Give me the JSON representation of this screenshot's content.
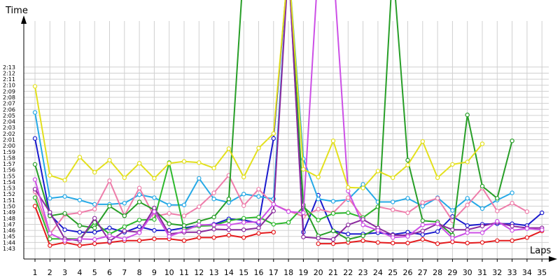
{
  "chart_data": {
    "type": "line",
    "title": "",
    "ylabel": "Time",
    "xlabel": "Laps",
    "grid": true,
    "legend": "none",
    "x_categories": [
      "1",
      "2",
      "3",
      "4",
      "5",
      "6",
      "7",
      "8",
      "9",
      "10",
      "11",
      "12",
      "13",
      "14",
      "15",
      "16",
      "17",
      "18",
      "19",
      "20",
      "21",
      "22",
      "23",
      "24",
      "25",
      "26",
      "27",
      "28",
      "29",
      "30",
      "31",
      "32",
      "33",
      "34",
      "35"
    ],
    "y_ticks": [
      "1:43",
      "1:44",
      "1:45",
      "1:46",
      "1:47",
      "1:48",
      "1:49",
      "1:50",
      "1:51",
      "1:52",
      "1:53",
      "1:54",
      "1:55",
      "1:56",
      "1:57",
      "1:58",
      "1:59",
      "2:00",
      "2:01",
      "2:02",
      "2:03",
      "2:04",
      "2:05",
      "2:06",
      "2:07",
      "2:08",
      "2:09",
      "2:10",
      "2:11",
      "2:12",
      "2:13"
    ],
    "ylim_seconds": [
      102.2,
      133.5
    ],
    "series": [
      {
        "color": "#e41a1c",
        "values": [
          110,
          103.5,
          104,
          103.5,
          103.8,
          104,
          104.3,
          104.3,
          104.6,
          104.6,
          104.3,
          104.8,
          104.8,
          105.2,
          104.8,
          105.5,
          105.7,
          null,
          null,
          103.8,
          103.8,
          104,
          104.3,
          104,
          103.9,
          103.9,
          104.5,
          103.8,
          104.1,
          103.9,
          104,
          104.3,
          104.3,
          104.8,
          105.9
        ]
      },
      {
        "color": "#1a1acd",
        "values": [
          121.2,
          108.6,
          106.1,
          105.7,
          105.7,
          106.4,
          105.7,
          106.6,
          106,
          106,
          106.4,
          106.8,
          107,
          107.9,
          107.7,
          107.2,
          121.2,
          150,
          105.7,
          111.8,
          105.9,
          105.4,
          105.4,
          105.6,
          105.3,
          105.7,
          105.3,
          105.8,
          108.3,
          106.8,
          107,
          107.1,
          107.1,
          106.8,
          108.9
        ]
      },
      {
        "color": "#26a9e6",
        "values": [
          125.5,
          111.3,
          111.6,
          111,
          110.3,
          110.3,
          110.5,
          111.9,
          111.4,
          110.2,
          110.2,
          114.6,
          111.2,
          110.6,
          112,
          111.6,
          111.2,
          150,
          117.8,
          111.2,
          110.8,
          111.1,
          113.6,
          110.7,
          110.7,
          111.3,
          110,
          111.4,
          109.3,
          111.3,
          109.6,
          111,
          112.2,
          null,
          null
        ]
      },
      {
        "color": "#ee7daa",
        "values": [
          112.4,
          105.4,
          108.6,
          108.9,
          109.5,
          114.2,
          108.4,
          113,
          108.3,
          108.8,
          108.4,
          109.9,
          112.2,
          115.1,
          110.1,
          112.8,
          110.3,
          109.2,
          108.3,
          109.5,
          108.9,
          111.4,
          108.1,
          109.9,
          109.4,
          108.9,
          110.6,
          111.3,
          107.6,
          110.2,
          113,
          109.2,
          110.5,
          109.1,
          null
        ]
      },
      {
        "color": "#2db82d",
        "values": [
          111.4,
          104.6,
          104.6,
          104.6,
          107.3,
          105.4,
          106.6,
          107.7,
          107.8,
          117.2,
          106.2,
          106.7,
          106.8,
          107.6,
          108,
          108.2,
          107,
          107.3,
          109.9,
          107.7,
          108.8,
          108.9,
          108.1,
          109.9,
          null,
          null,
          null,
          null,
          null,
          null,
          null,
          null,
          null,
          null,
          null
        ]
      },
      {
        "color": "#279e27",
        "values": [
          116.9,
          108.4,
          108.8,
          106.8,
          106.4,
          110,
          108.4,
          110.7,
          109.4,
          107.1,
          106.8,
          107.5,
          108.2,
          111.2,
          150,
          150,
          150,
          150,
          110.2,
          105.1,
          105.9,
          104.5,
          105.1,
          106.4,
          150,
          117.6,
          107.6,
          107.4,
          105.2,
          125.1,
          113.3,
          111.3,
          120.8,
          null,
          null
        ]
      },
      {
        "color": "#8a2a9e",
        "values": [
          112.8,
          109,
          104.6,
          104.3,
          108,
          104.2,
          105.9,
          105.7,
          109.7,
          105.4,
          105.7,
          105.7,
          106.2,
          106.1,
          106.1,
          106.4,
          109.2,
          150,
          104.9,
          104.7,
          104.5,
          106.9,
          107.8,
          106.4,
          105.2,
          105.2,
          105.9,
          107.1,
          106.1,
          106.1,
          106.7,
          107.3,
          106.7,
          106.4,
          106.4
        ]
      },
      {
        "color": "#cc4fe6",
        "values": [
          114.4,
          105.5,
          104.3,
          104.6,
          104.5,
          105.1,
          104.6,
          105.6,
          109.1,
          105,
          105.9,
          106.9,
          106.9,
          106.9,
          107.3,
          107.4,
          110.3,
          109.1,
          108.9,
          150,
          150,
          112.5,
          106.9,
          106,
          104.8,
          105,
          106.9,
          107.1,
          104.7,
          105.6,
          105.6,
          107.5,
          106,
          106.3,
          106.1
        ]
      },
      {
        "color": "#e3e01d",
        "values": [
          129.8,
          115.1,
          114.3,
          118.1,
          115.6,
          117.6,
          114.7,
          117.1,
          114.6,
          117.1,
          117.4,
          117.2,
          116.3,
          119.5,
          114.8,
          119.6,
          122,
          150,
          116.1,
          114.8,
          120.8,
          113.1,
          113,
          115.8,
          114.7,
          116.8,
          120.7,
          114.7,
          116.9,
          117.3,
          120.3,
          null,
          null,
          null,
          null
        ]
      }
    ]
  }
}
